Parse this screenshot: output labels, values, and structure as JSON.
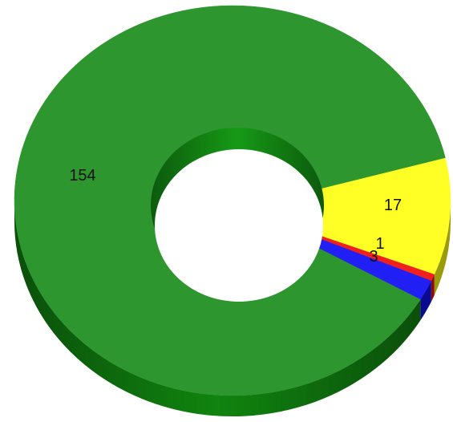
{
  "chart_data": {
    "type": "pie",
    "style": "3d-donut",
    "categories": [
      "",
      "",
      "",
      ""
    ],
    "values": [
      154,
      17,
      1,
      3
    ],
    "labels": [
      "154",
      "17",
      "1",
      "3"
    ],
    "colors": [
      "#2e962e",
      "#ffff26",
      "#f21f1f",
      "#2020f5"
    ],
    "side_colors": [
      "#0f6a0f",
      "#9a9a0a",
      "#8e0a0a",
      "#0a0a8e"
    ],
    "title": "",
    "legend": "none"
  }
}
